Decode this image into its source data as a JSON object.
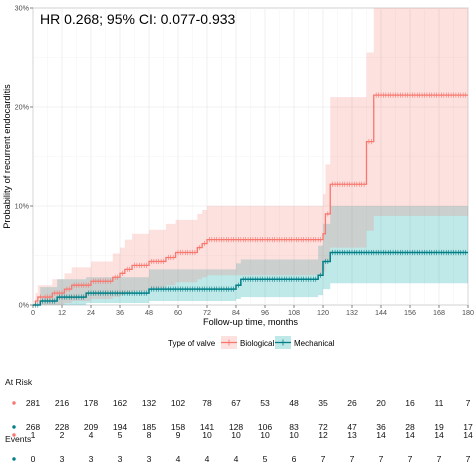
{
  "chart_data": {
    "type": "line",
    "subtype": "cumulative-incidence-step",
    "annotation": "HR 0.268; 95% CI: 0.077-0.933",
    "xlabel": "Follow-up time, months",
    "ylabel": "Probability of recurrent endocarditis",
    "xlim": [
      0,
      180
    ],
    "ylim": [
      0,
      0.3
    ],
    "x_ticks": [
      0,
      12,
      24,
      36,
      48,
      60,
      72,
      84,
      96,
      108,
      120,
      132,
      144,
      156,
      168,
      180
    ],
    "y_ticks": [
      {
        "value": 0,
        "label": "0%"
      },
      {
        "value": 0.1,
        "label": "10%"
      },
      {
        "value": 0.2,
        "label": "20%"
      },
      {
        "value": 0.3,
        "label": "30%"
      }
    ],
    "grid": true,
    "legend": {
      "title": "Type of valve",
      "position": "bottom",
      "entries": [
        "Biological",
        "Mechanical"
      ]
    },
    "colors": {
      "Biological": "#f8766d",
      "Mechanical": "#00a3a5",
      "line_mech": "#007f86",
      "panel": "#ffffff",
      "grid": "#ebebeb"
    },
    "series": [
      {
        "name": "Biological",
        "steps": [
          [
            0,
            0
          ],
          [
            1,
            0.004
          ],
          [
            2,
            0.008
          ],
          [
            8,
            0.012
          ],
          [
            13,
            0.016
          ],
          [
            16,
            0.02
          ],
          [
            24,
            0.024
          ],
          [
            33,
            0.028
          ],
          [
            36,
            0.032
          ],
          [
            38,
            0.036
          ],
          [
            41,
            0.04
          ],
          [
            48,
            0.044
          ],
          [
            55,
            0.048
          ],
          [
            59,
            0.053
          ],
          [
            68,
            0.058
          ],
          [
            70,
            0.062
          ],
          [
            72,
            0.066
          ],
          [
            120,
            0.072
          ],
          [
            121,
            0.092
          ],
          [
            123,
            0.122
          ],
          [
            138,
            0.165
          ],
          [
            141,
            0.212
          ],
          [
            180,
            0.212
          ]
        ],
        "ci_lower": [
          [
            0,
            0
          ],
          [
            1,
            0
          ],
          [
            2,
            0
          ],
          [
            8,
            0
          ],
          [
            13,
            0.002
          ],
          [
            16,
            0.004
          ],
          [
            24,
            0.006
          ],
          [
            33,
            0.008
          ],
          [
            36,
            0.01
          ],
          [
            38,
            0.012
          ],
          [
            41,
            0.014
          ],
          [
            48,
            0.017
          ],
          [
            55,
            0.02
          ],
          [
            59,
            0.023
          ],
          [
            68,
            0.026
          ],
          [
            70,
            0.028
          ],
          [
            72,
            0.03
          ],
          [
            120,
            0.034
          ],
          [
            121,
            0.045
          ],
          [
            123,
            0.058
          ],
          [
            138,
            0.075
          ],
          [
            141,
            0.09
          ],
          [
            180,
            0.09
          ]
        ],
        "ci_upper": [
          [
            0,
            0
          ],
          [
            1,
            0.012
          ],
          [
            2,
            0.02
          ],
          [
            8,
            0.026
          ],
          [
            13,
            0.032
          ],
          [
            16,
            0.038
          ],
          [
            24,
            0.044
          ],
          [
            33,
            0.052
          ],
          [
            36,
            0.058
          ],
          [
            38,
            0.066
          ],
          [
            41,
            0.072
          ],
          [
            48,
            0.076
          ],
          [
            55,
            0.082
          ],
          [
            59,
            0.086
          ],
          [
            68,
            0.092
          ],
          [
            70,
            0.096
          ],
          [
            72,
            0.1
          ],
          [
            120,
            0.112
          ],
          [
            121,
            0.142
          ],
          [
            123,
            0.21
          ],
          [
            138,
            0.255
          ],
          [
            141,
            0.3
          ],
          [
            180,
            0.3
          ]
        ],
        "censor_x": [
          3,
          5,
          6,
          7,
          9,
          10,
          11,
          12,
          14,
          15,
          17,
          18,
          19,
          20,
          21,
          22,
          23,
          25,
          26,
          27,
          28,
          29,
          30,
          31,
          32,
          34,
          35,
          37,
          39,
          40,
          42,
          43,
          44,
          45,
          46,
          47,
          49,
          50,
          51,
          52,
          53,
          54,
          56,
          57,
          58,
          60,
          61,
          62,
          63,
          64,
          65,
          66,
          67,
          69,
          71,
          73,
          74,
          75,
          76,
          77,
          78,
          79,
          80,
          81,
          82,
          83,
          84,
          85,
          86,
          87,
          88,
          89,
          90,
          91,
          92,
          93,
          94,
          95,
          96,
          97,
          98,
          99,
          100,
          101,
          102,
          103,
          104,
          105,
          106,
          107,
          108,
          109,
          110,
          111,
          112,
          113,
          114,
          115,
          116,
          117,
          118,
          119,
          122,
          124,
          125,
          126,
          127,
          128,
          129,
          130,
          131,
          132,
          133,
          134,
          135,
          136,
          137,
          139,
          140,
          142,
          143,
          144,
          145,
          146,
          147,
          148,
          149,
          150,
          151,
          152,
          153,
          154,
          155,
          156,
          157,
          158,
          159,
          160,
          161,
          162,
          163,
          164,
          165,
          166,
          167,
          168,
          169,
          170,
          171,
          172,
          173,
          174,
          175,
          176,
          177,
          178,
          179
        ]
      },
      {
        "name": "Mechanical",
        "steps": [
          [
            0,
            0
          ],
          [
            3,
            0.004
          ],
          [
            10,
            0.008
          ],
          [
            22,
            0.012
          ],
          [
            48,
            0.016
          ],
          [
            84,
            0.02
          ],
          [
            86,
            0.026
          ],
          [
            118,
            0.03
          ],
          [
            120,
            0.044
          ],
          [
            123,
            0.053
          ],
          [
            180,
            0.053
          ]
        ],
        "ci_lower": [
          [
            0,
            0
          ],
          [
            3,
            0
          ],
          [
            10,
            0
          ],
          [
            22,
            0.002
          ],
          [
            48,
            0.004
          ],
          [
            84,
            0.006
          ],
          [
            86,
            0.008
          ],
          [
            118,
            0.01
          ],
          [
            120,
            0.016
          ],
          [
            123,
            0.022
          ],
          [
            180,
            0.022
          ]
        ],
        "ci_upper": [
          [
            0,
            0
          ],
          [
            3,
            0.018
          ],
          [
            10,
            0.026
          ],
          [
            22,
            0.028
          ],
          [
            48,
            0.036
          ],
          [
            84,
            0.042
          ],
          [
            86,
            0.046
          ],
          [
            118,
            0.06
          ],
          [
            120,
            0.082
          ],
          [
            123,
            0.1
          ],
          [
            180,
            0.1
          ]
        ],
        "censor_x": [
          1,
          2,
          4,
          5,
          6,
          7,
          8,
          9,
          11,
          12,
          13,
          14,
          15,
          16,
          17,
          18,
          19,
          20,
          21,
          23,
          24,
          25,
          26,
          27,
          28,
          29,
          30,
          31,
          32,
          33,
          34,
          35,
          36,
          37,
          38,
          39,
          40,
          41,
          42,
          43,
          44,
          45,
          46,
          47,
          49,
          50,
          51,
          52,
          53,
          54,
          55,
          56,
          57,
          58,
          59,
          60,
          61,
          62,
          63,
          64,
          65,
          66,
          67,
          68,
          69,
          70,
          71,
          72,
          73,
          74,
          75,
          76,
          77,
          78,
          79,
          80,
          81,
          82,
          83,
          85,
          87,
          88,
          89,
          90,
          91,
          92,
          93,
          94,
          95,
          96,
          97,
          98,
          99,
          100,
          101,
          102,
          103,
          104,
          105,
          106,
          107,
          108,
          109,
          110,
          111,
          112,
          113,
          114,
          115,
          116,
          117,
          119,
          121,
          122,
          124,
          125,
          126,
          127,
          128,
          129,
          130,
          131,
          132,
          133,
          134,
          135,
          136,
          137,
          138,
          139,
          140,
          141,
          142,
          143,
          144,
          145,
          146,
          147,
          148,
          149,
          150,
          151,
          152,
          153,
          154,
          155,
          156,
          157,
          158,
          159,
          160,
          161,
          162,
          163,
          164,
          165,
          166,
          167,
          168,
          169,
          170,
          171,
          172,
          173,
          174,
          175,
          176,
          177,
          178,
          179
        ]
      }
    ],
    "risk_table": {
      "title": "At Risk",
      "rows": [
        {
          "group": "Biological",
          "values": [
            "281",
            "216",
            "178",
            "162",
            "132",
            "102",
            "78",
            "67",
            "53",
            "48",
            "35",
            "26",
            "20",
            "16",
            "11",
            "7"
          ]
        },
        {
          "group": "Mechanical",
          "values": [
            "268",
            "228",
            "209",
            "194",
            "185",
            "158",
            "141",
            "128",
            "106",
            "83",
            "72",
            "47",
            "36",
            "28",
            "19",
            "17"
          ]
        }
      ]
    },
    "events_table": {
      "title": "Events",
      "rows": [
        {
          "group": "Biological",
          "values": [
            "1",
            "2",
            "4",
            "5",
            "8",
            "9",
            "10",
            "10",
            "10",
            "10",
            "12",
            "13",
            "14",
            "14",
            "14",
            "14"
          ]
        },
        {
          "group": "Mechanical",
          "values": [
            "0",
            "3",
            "3",
            "3",
            "3",
            "4",
            "4",
            "4",
            "5",
            "6",
            "7",
            "7",
            "7",
            "7",
            "7",
            "7"
          ]
        }
      ]
    }
  }
}
